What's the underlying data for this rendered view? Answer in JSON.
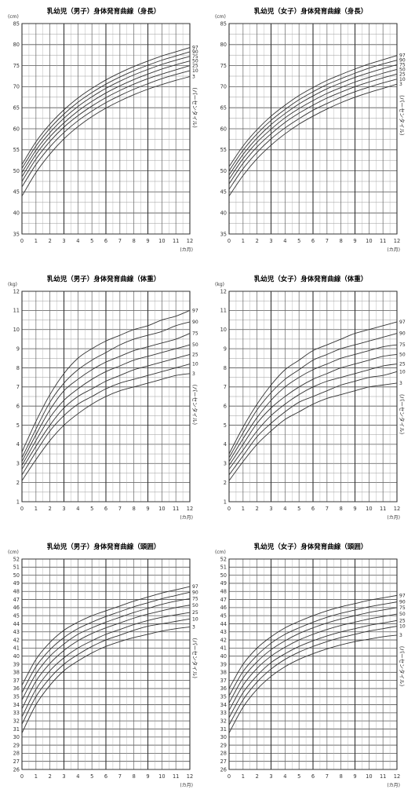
{
  "chart_data": [
    {
      "type": "line",
      "title": "乳幼児（男子）身体発育曲線（身長）",
      "y_unit": "(cm)",
      "x_unit": "(カ月)",
      "xlim": [
        0,
        12
      ],
      "ylim": [
        35,
        85
      ],
      "y_ticks": [
        35,
        40,
        45,
        50,
        55,
        60,
        65,
        70,
        75,
        80,
        85
      ],
      "x_ticks": [
        0,
        1,
        2,
        3,
        4,
        5,
        6,
        7,
        8,
        9,
        10,
        11,
        12
      ],
      "minor_grid_step": 1,
      "major_grid_step": 5,
      "annotation": "(パーセンタイル)",
      "x": [
        0,
        1,
        2,
        3,
        4,
        5,
        6,
        7,
        8,
        9,
        10,
        11,
        12
      ],
      "series": [
        {
          "name": "97",
          "values": [
            51.5,
            56.9,
            61.1,
            64.5,
            67.3,
            69.6,
            71.6,
            73.3,
            74.8,
            76.1,
            77.3,
            78.3,
            79.3
          ]
        },
        {
          "name": "90",
          "values": [
            50.6,
            55.9,
            60.1,
            63.5,
            66.3,
            68.6,
            70.6,
            72.3,
            73.8,
            75.1,
            76.3,
            77.3,
            78.3
          ]
        },
        {
          "name": "75",
          "values": [
            49.6,
            54.9,
            59.1,
            62.5,
            65.3,
            67.6,
            69.6,
            71.3,
            72.8,
            74.1,
            75.3,
            76.3,
            77.2
          ]
        },
        {
          "name": "50",
          "values": [
            48.6,
            53.9,
            58.1,
            61.4,
            64.2,
            66.5,
            68.5,
            70.2,
            71.7,
            73.0,
            74.2,
            75.2,
            76.1
          ]
        },
        {
          "name": "25",
          "values": [
            47.5,
            52.8,
            57.0,
            60.4,
            63.1,
            65.4,
            67.4,
            69.1,
            70.6,
            71.9,
            73.0,
            74.0,
            75.0
          ]
        },
        {
          "name": "10",
          "values": [
            46.2,
            51.5,
            55.7,
            59.1,
            61.9,
            64.2,
            66.2,
            67.9,
            69.4,
            70.7,
            71.9,
            72.9,
            73.8
          ]
        },
        {
          "name": "3",
          "values": [
            44.0,
            49.6,
            54.0,
            57.6,
            60.5,
            62.9,
            64.9,
            66.6,
            68.1,
            69.4,
            70.5,
            71.5,
            72.4
          ]
        }
      ]
    },
    {
      "type": "line",
      "title": "乳幼児（女子）身体発育曲線（身長）",
      "y_unit": "(cm)",
      "x_unit": "(カ月)",
      "xlim": [
        0,
        12
      ],
      "ylim": [
        35,
        85
      ],
      "y_ticks": [
        35,
        40,
        45,
        50,
        55,
        60,
        65,
        70,
        75,
        80,
        85
      ],
      "x_ticks": [
        0,
        1,
        2,
        3,
        4,
        5,
        6,
        7,
        8,
        9,
        10,
        11,
        12
      ],
      "minor_grid_step": 1,
      "major_grid_step": 5,
      "annotation": "(パーセンタイル)",
      "x": [
        0,
        1,
        2,
        3,
        4,
        5,
        6,
        7,
        8,
        9,
        10,
        11,
        12
      ],
      "series": [
        {
          "name": "97",
          "values": [
            51.0,
            55.9,
            59.8,
            63.0,
            65.6,
            67.9,
            69.8,
            71.5,
            72.9,
            74.2,
            75.4,
            76.4,
            77.4
          ]
        },
        {
          "name": "90",
          "values": [
            50.0,
            54.9,
            58.8,
            62.0,
            64.6,
            66.9,
            68.8,
            70.5,
            71.9,
            73.2,
            74.4,
            75.4,
            76.3
          ]
        },
        {
          "name": "75",
          "values": [
            49.0,
            53.9,
            57.8,
            61.0,
            63.6,
            65.9,
            67.8,
            69.5,
            70.9,
            72.2,
            73.3,
            74.3,
            75.2
          ]
        },
        {
          "name": "50",
          "values": [
            48.0,
            52.9,
            56.8,
            59.9,
            62.6,
            64.8,
            66.7,
            68.4,
            69.8,
            71.1,
            72.2,
            73.2,
            74.1
          ]
        },
        {
          "name": "25",
          "values": [
            46.9,
            51.8,
            55.7,
            58.8,
            61.5,
            63.7,
            65.6,
            67.3,
            68.7,
            70.0,
            71.1,
            72.1,
            73.0
          ]
        },
        {
          "name": "10",
          "values": [
            45.6,
            50.5,
            54.4,
            57.6,
            60.2,
            62.4,
            64.4,
            66.0,
            67.5,
            68.8,
            69.9,
            70.9,
            71.8
          ]
        },
        {
          "name": "3",
          "values": [
            44.0,
            48.9,
            52.9,
            56.1,
            58.8,
            61.1,
            63.0,
            64.7,
            66.2,
            67.5,
            68.6,
            69.6,
            70.6
          ]
        }
      ]
    },
    {
      "type": "line",
      "title": "乳幼児（男子）身体発育曲線（体重）",
      "y_unit": "(kg)",
      "x_unit": "(カ月)",
      "xlim": [
        0,
        12
      ],
      "ylim": [
        1,
        12
      ],
      "y_ticks": [
        1,
        2,
        3,
        4,
        5,
        6,
        7,
        8,
        9,
        10,
        11,
        12
      ],
      "x_ticks": [
        0,
        1,
        2,
        3,
        4,
        5,
        6,
        7,
        8,
        9,
        10,
        11,
        12
      ],
      "minor_grid_step": 1,
      "major_grid_step": 5,
      "annotation": "(パーセンタイル)",
      "x": [
        0,
        1,
        2,
        3,
        4,
        5,
        6,
        7,
        8,
        9,
        10,
        11,
        12
      ],
      "series": [
        {
          "name": "97",
          "values": [
            3.6,
            5.2,
            6.6,
            7.7,
            8.5,
            9.0,
            9.4,
            9.7,
            10.0,
            10.2,
            10.5,
            10.7,
            11.0
          ]
        },
        {
          "name": "90",
          "values": [
            3.3,
            4.8,
            6.2,
            7.2,
            7.9,
            8.4,
            8.8,
            9.2,
            9.5,
            9.7,
            9.9,
            10.2,
            10.4
          ]
        },
        {
          "name": "75",
          "values": [
            3.1,
            4.5,
            5.8,
            6.8,
            7.4,
            7.9,
            8.3,
            8.6,
            8.9,
            9.1,
            9.3,
            9.5,
            9.8
          ]
        },
        {
          "name": "50",
          "values": [
            2.9,
            4.2,
            5.4,
            6.3,
            6.9,
            7.4,
            7.8,
            8.1,
            8.4,
            8.6,
            8.8,
            9.0,
            9.2
          ]
        },
        {
          "name": "25",
          "values": [
            2.7,
            3.9,
            5.0,
            5.9,
            6.5,
            6.9,
            7.3,
            7.6,
            7.9,
            8.1,
            8.3,
            8.5,
            8.7
          ]
        },
        {
          "name": "10",
          "values": [
            2.4,
            3.6,
            4.7,
            5.5,
            6.1,
            6.5,
            6.9,
            7.2,
            7.4,
            7.6,
            7.8,
            8.0,
            8.2
          ]
        },
        {
          "name": "3",
          "values": [
            2.1,
            3.2,
            4.2,
            5.0,
            5.6,
            6.1,
            6.5,
            6.8,
            7.0,
            7.2,
            7.4,
            7.6,
            7.7
          ]
        }
      ]
    },
    {
      "type": "line",
      "title": "乳幼児（女子）身体発育曲線（体重）",
      "y_unit": "(kg)",
      "x_unit": "(カ月)",
      "xlim": [
        0,
        12
      ],
      "ylim": [
        1,
        12
      ],
      "y_ticks": [
        1,
        2,
        3,
        4,
        5,
        6,
        7,
        8,
        9,
        10,
        11,
        12
      ],
      "x_ticks": [
        0,
        1,
        2,
        3,
        4,
        5,
        6,
        7,
        8,
        9,
        10,
        11,
        12
      ],
      "minor_grid_step": 1,
      "major_grid_step": 5,
      "annotation": "(パーセンタイル)",
      "x": [
        0,
        1,
        2,
        3,
        4,
        5,
        6,
        7,
        8,
        9,
        10,
        11,
        12
      ],
      "series": [
        {
          "name": "97",
          "values": [
            3.5,
            4.9,
            6.1,
            7.1,
            7.9,
            8.4,
            8.9,
            9.2,
            9.5,
            9.8,
            10.0,
            10.2,
            10.4
          ]
        },
        {
          "name": "90",
          "values": [
            3.3,
            4.6,
            5.8,
            6.7,
            7.4,
            7.9,
            8.4,
            8.7,
            9.0,
            9.2,
            9.4,
            9.6,
            9.8
          ]
        },
        {
          "name": "75",
          "values": [
            3.1,
            4.3,
            5.4,
            6.3,
            7.0,
            7.5,
            7.9,
            8.2,
            8.5,
            8.7,
            8.9,
            9.1,
            9.2
          ]
        },
        {
          "name": "50",
          "values": [
            2.9,
            4.0,
            5.1,
            5.9,
            6.5,
            7.0,
            7.4,
            7.7,
            8.0,
            8.2,
            8.4,
            8.6,
            8.7
          ]
        },
        {
          "name": "25",
          "values": [
            2.7,
            3.7,
            4.7,
            5.5,
            6.1,
            6.6,
            7.0,
            7.3,
            7.5,
            7.7,
            7.9,
            8.1,
            8.2
          ]
        },
        {
          "name": "10",
          "values": [
            2.4,
            3.4,
            4.4,
            5.1,
            5.7,
            6.2,
            6.5,
            6.8,
            7.1,
            7.3,
            7.5,
            7.6,
            7.8
          ]
        },
        {
          "name": "3",
          "values": [
            2.1,
            3.1,
            4.0,
            4.7,
            5.3,
            5.7,
            6.1,
            6.4,
            6.6,
            6.8,
            7.0,
            7.1,
            7.2
          ]
        }
      ]
    },
    {
      "type": "line",
      "title": "乳幼児（男子）身体発育曲線（頭囲）",
      "y_unit": "(cm)",
      "x_unit": "(カ月)",
      "xlim": [
        0,
        12
      ],
      "ylim": [
        26,
        52
      ],
      "y_ticks": [
        26,
        27,
        28,
        29,
        30,
        31,
        32,
        33,
        34,
        35,
        36,
        37,
        38,
        39,
        40,
        41,
        42,
        43,
        44,
        45,
        46,
        47,
        48,
        49,
        50,
        51,
        52
      ],
      "x_ticks": [
        0,
        1,
        2,
        3,
        4,
        5,
        6,
        7,
        8,
        9,
        10,
        11,
        12
      ],
      "minor_grid_step": 1,
      "major_grid_step": 5,
      "annotation": "(パーセンタイル)",
      "x": [
        0,
        1,
        2,
        3,
        4,
        5,
        6,
        7,
        8,
        9,
        10,
        11,
        12
      ],
      "series": [
        {
          "name": "97",
          "values": [
            36.4,
            39.6,
            41.7,
            43.2,
            44.2,
            45.0,
            45.6,
            46.2,
            46.8,
            47.3,
            47.8,
            48.2,
            48.6
          ]
        },
        {
          "name": "90",
          "values": [
            35.5,
            38.7,
            40.8,
            42.3,
            43.4,
            44.2,
            44.9,
            45.5,
            46.1,
            46.6,
            47.1,
            47.5,
            47.9
          ]
        },
        {
          "name": "75",
          "values": [
            34.6,
            37.8,
            40.0,
            41.5,
            42.7,
            43.5,
            44.2,
            44.8,
            45.4,
            45.9,
            46.4,
            46.8,
            47.1
          ]
        },
        {
          "name": "50",
          "values": [
            33.5,
            36.9,
            39.1,
            40.7,
            41.9,
            42.8,
            43.5,
            44.1,
            44.7,
            45.2,
            45.6,
            46.0,
            46.3
          ]
        },
        {
          "name": "25",
          "values": [
            32.5,
            35.9,
            38.2,
            39.8,
            41.0,
            41.9,
            42.7,
            43.3,
            43.9,
            44.4,
            44.8,
            45.1,
            45.4
          ]
        },
        {
          "name": "10",
          "values": [
            31.6,
            35.0,
            37.3,
            39.0,
            40.2,
            41.2,
            42.0,
            42.6,
            43.2,
            43.7,
            44.0,
            44.3,
            44.6
          ]
        },
        {
          "name": "3",
          "values": [
            30.5,
            34.0,
            36.4,
            38.2,
            39.4,
            40.4,
            41.2,
            41.8,
            42.3,
            42.7,
            43.1,
            43.4,
            43.6
          ]
        }
      ]
    },
    {
      "type": "line",
      "title": "乳幼児（女子）身体発育曲線（頭囲）",
      "y_unit": "(cm)",
      "x_unit": "(カ月)",
      "xlim": [
        0,
        12
      ],
      "ylim": [
        26,
        52
      ],
      "y_ticks": [
        26,
        27,
        28,
        29,
        30,
        31,
        32,
        33,
        34,
        35,
        36,
        37,
        38,
        39,
        40,
        41,
        42,
        43,
        44,
        45,
        46,
        47,
        48,
        49,
        50,
        51,
        52
      ],
      "x_ticks": [
        0,
        1,
        2,
        3,
        4,
        5,
        6,
        7,
        8,
        9,
        10,
        11,
        12
      ],
      "minor_grid_step": 1,
      "major_grid_step": 5,
      "annotation": "(パーセンタイル)",
      "x": [
        0,
        1,
        2,
        3,
        4,
        5,
        6,
        7,
        8,
        9,
        10,
        11,
        12
      ],
      "series": [
        {
          "name": "97",
          "values": [
            36.0,
            39.0,
            41.0,
            42.4,
            43.5,
            44.3,
            45.0,
            45.6,
            46.1,
            46.5,
            46.9,
            47.2,
            47.5
          ]
        },
        {
          "name": "90",
          "values": [
            35.1,
            38.1,
            40.1,
            41.6,
            42.7,
            43.5,
            44.2,
            44.8,
            45.3,
            45.7,
            46.1,
            46.4,
            46.7
          ]
        },
        {
          "name": "75",
          "values": [
            34.2,
            37.3,
            39.3,
            40.8,
            41.9,
            42.8,
            43.5,
            44.1,
            44.6,
            45.0,
            45.4,
            45.7,
            46.0
          ]
        },
        {
          "name": "50",
          "values": [
            33.3,
            36.4,
            38.5,
            40.0,
            41.1,
            42.0,
            42.7,
            43.3,
            43.8,
            44.2,
            44.6,
            44.9,
            45.2
          ]
        },
        {
          "name": "25",
          "values": [
            32.4,
            35.5,
            37.6,
            39.2,
            40.3,
            41.2,
            41.9,
            42.5,
            43.0,
            43.4,
            43.8,
            44.1,
            44.4
          ]
        },
        {
          "name": "10",
          "values": [
            31.5,
            34.6,
            36.8,
            38.4,
            39.6,
            40.5,
            41.2,
            41.8,
            42.3,
            42.7,
            43.1,
            43.4,
            43.7
          ]
        },
        {
          "name": "3",
          "values": [
            30.5,
            33.7,
            35.9,
            37.5,
            38.7,
            39.6,
            40.3,
            40.9,
            41.4,
            41.8,
            42.1,
            42.4,
            42.6
          ]
        }
      ]
    }
  ]
}
